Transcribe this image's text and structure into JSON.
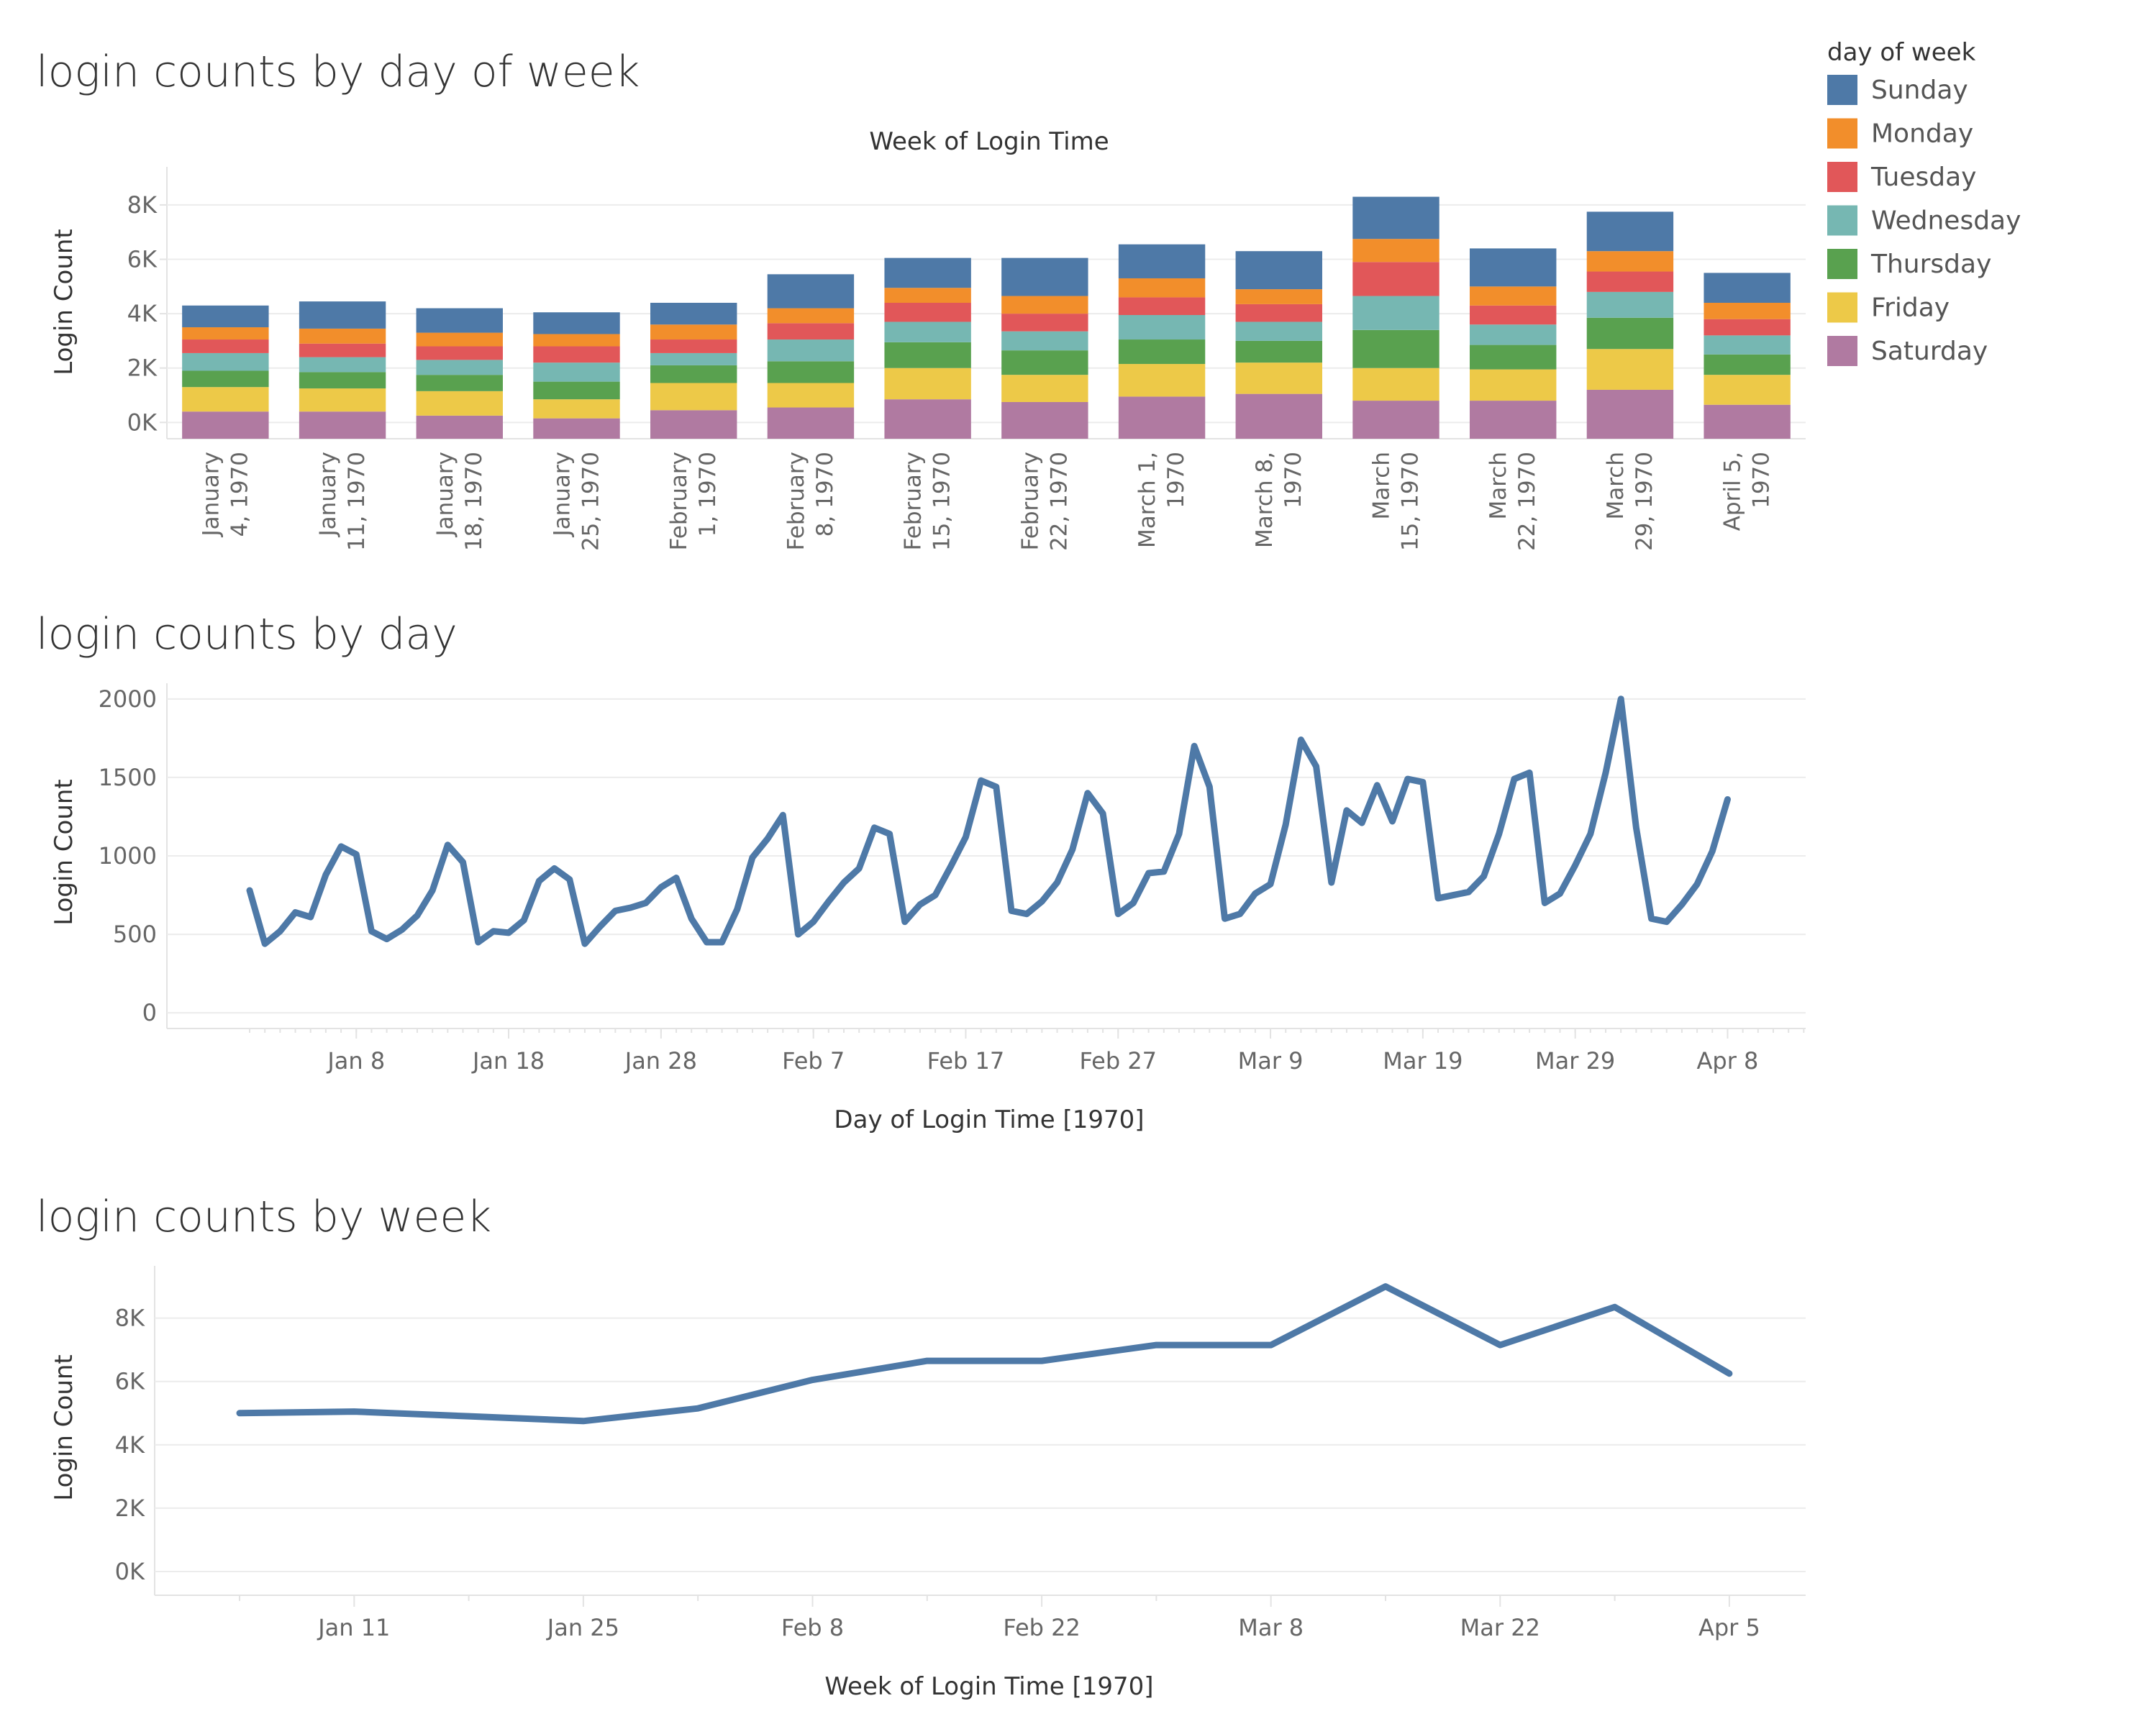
{
  "legend": {
    "title": "day of week",
    "items": [
      {
        "name": "Sunday",
        "color": "#4e79a7"
      },
      {
        "name": "Monday",
        "color": "#f28e2b"
      },
      {
        "name": "Tuesday",
        "color": "#e15759"
      },
      {
        "name": "Wednesday",
        "color": "#76b7b2"
      },
      {
        "name": "Thursday",
        "color": "#59a14f"
      },
      {
        "name": "Friday",
        "color": "#edc948"
      },
      {
        "name": "Saturday",
        "color": "#b07aa1"
      }
    ]
  },
  "chart_data": [
    {
      "type": "bar",
      "stacked": true,
      "title": "login counts by day of week",
      "xlabel": "Week of Login Time",
      "ylabel": "Login Count",
      "ylim": [
        -600,
        9400
      ],
      "yticks": [
        0,
        2000,
        4000,
        6000,
        8000
      ],
      "ytick_labels": [
        "0K",
        "2K",
        "4K",
        "6K",
        "8K"
      ],
      "categories": [
        "January 4, 1970",
        "January 11, 1970",
        "January 18, 1970",
        "January 25, 1970",
        "February 1, 1970",
        "February 8, 1970",
        "February 15, 1970",
        "February 22, 1970",
        "March 1, 1970",
        "March 8, 1970",
        "March 15, 1970",
        "March 22, 1970",
        "March 29, 1970",
        "April 5, 1970"
      ],
      "category_lines": [
        [
          "January",
          "4, 1970"
        ],
        [
          "January",
          "11, 1970"
        ],
        [
          "January",
          "18, 1970"
        ],
        [
          "January",
          "25, 1970"
        ],
        [
          "February",
          "1, 1970"
        ],
        [
          "February",
          "8, 1970"
        ],
        [
          "February",
          "15, 1970"
        ],
        [
          "February",
          "22, 1970"
        ],
        [
          "March 1,",
          "1970"
        ],
        [
          "March 8,",
          "1970"
        ],
        [
          "March",
          "15, 1970"
        ],
        [
          "March",
          "22, 1970"
        ],
        [
          "March",
          "29, 1970"
        ],
        [
          "April 5,",
          "1970"
        ]
      ],
      "series": [
        {
          "name": "Saturday",
          "values": [
            1000,
            1000,
            850,
            750,
            1050,
            1150,
            1450,
            1350,
            1550,
            1650,
            1400,
            1400,
            1800,
            1250
          ]
        },
        {
          "name": "Friday",
          "values": [
            900,
            850,
            900,
            700,
            1000,
            900,
            1150,
            1000,
            1200,
            1150,
            1200,
            1150,
            1500,
            1100
          ]
        },
        {
          "name": "Thursday",
          "values": [
            600,
            600,
            600,
            650,
            650,
            800,
            950,
            900,
            900,
            800,
            1400,
            900,
            1150,
            750
          ]
        },
        {
          "name": "Wednesday",
          "values": [
            650,
            550,
            550,
            700,
            450,
            800,
            750,
            700,
            900,
            700,
            1250,
            750,
            950,
            700
          ]
        },
        {
          "name": "Tuesday",
          "values": [
            500,
            500,
            500,
            600,
            500,
            600,
            700,
            650,
            650,
            650,
            1250,
            700,
            750,
            600
          ]
        },
        {
          "name": "Monday",
          "values": [
            450,
            550,
            500,
            450,
            550,
            550,
            550,
            650,
            700,
            550,
            850,
            700,
            750,
            600
          ]
        },
        {
          "name": "Sunday",
          "values": [
            800,
            1000,
            900,
            800,
            800,
            1250,
            1100,
            1400,
            1250,
            1400,
            1550,
            1400,
            1450,
            1100
          ]
        }
      ]
    },
    {
      "type": "line",
      "title": "login counts by day",
      "xlabel": "Day of Login Time [1970]",
      "ylabel": "Login Count",
      "ylim": [
        -100,
        2100
      ],
      "yticks": [
        0,
        500,
        1000,
        1500,
        2000
      ],
      "ytick_labels": [
        "0",
        "500",
        "1000",
        "1500",
        "2000"
      ],
      "xtick_labels": [
        "Jan 8",
        "Jan 18",
        "Jan 28",
        "Feb 7",
        "Feb 17",
        "Feb 27",
        "Mar 9",
        "Mar 19",
        "Mar 29",
        "Apr 8"
      ],
      "x_first": "Jan 1",
      "series": [
        {
          "color": "#4e79a7",
          "values": [
            780,
            440,
            520,
            640,
            610,
            880,
            1060,
            1010,
            520,
            470,
            530,
            620,
            780,
            1070,
            960,
            450,
            520,
            510,
            590,
            840,
            920,
            850,
            440,
            550,
            650,
            670,
            700,
            800,
            860,
            600,
            450,
            450,
            660,
            990,
            1110,
            1260,
            500,
            580,
            710,
            830,
            920,
            1180,
            1140,
            580,
            690,
            750,
            930,
            1120,
            1480,
            1440,
            650,
            630,
            710,
            830,
            1040,
            1400,
            1270,
            630,
            700,
            890,
            900,
            1140,
            1700,
            1440,
            600,
            630,
            760,
            820,
            1200,
            1740,
            1570,
            830,
            1290,
            1210,
            1450,
            1220,
            1490,
            1470,
            730,
            750,
            770,
            870,
            1140,
            1490,
            1530,
            700,
            760,
            940,
            1140,
            1530,
            2000,
            1180,
            600,
            580,
            690,
            820,
            1030,
            1360
          ]
        }
      ]
    },
    {
      "type": "line",
      "title": "login counts by week",
      "xlabel": "Week of Login Time [1970]",
      "ylabel": "Login Count",
      "ylim": [
        -750,
        9650
      ],
      "yticks": [
        0,
        2000,
        4000,
        6000,
        8000
      ],
      "ytick_labels": [
        "0K",
        "2K",
        "4K",
        "6K",
        "8K"
      ],
      "x": [
        "January 4, 1970",
        "January 11, 1970",
        "January 18, 1970",
        "January 25, 1970",
        "February 1, 1970",
        "February 8, 1970",
        "February 15, 1970",
        "February 22, 1970",
        "March 1, 1970",
        "March 8, 1970",
        "March 15, 1970",
        "March 22, 1970",
        "March 29, 1970",
        "April 5, 1970"
      ],
      "xtick_labels": [
        "Jan 11",
        "Jan 25",
        "Feb 8",
        "Feb 22",
        "Mar 8",
        "Mar 22",
        "Apr 5"
      ],
      "series": [
        {
          "color": "#4e79a7",
          "values": [
            5000,
            5050,
            4900,
            4750,
            5150,
            6050,
            6650,
            6650,
            7150,
            7150,
            9000,
            7150,
            8350,
            6250
          ]
        }
      ]
    }
  ]
}
